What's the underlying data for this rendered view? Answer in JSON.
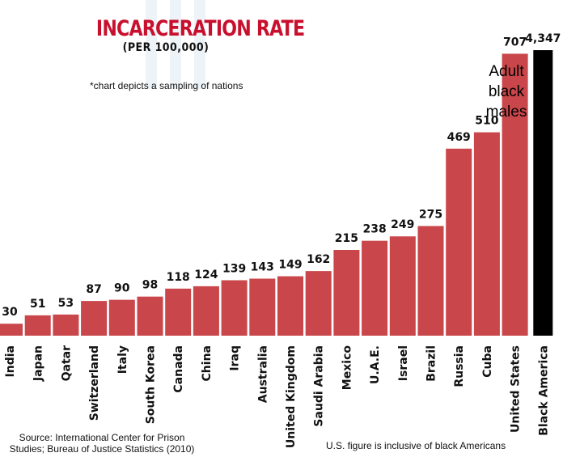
{
  "chart_data": {
    "type": "bar",
    "title": "INCARCERATION RATE",
    "subtitle": "(PER 100,000)",
    "note": "*chart depicts a sampling of nations",
    "categories": [
      "India",
      "Japan",
      "Qatar",
      "Switzerland",
      "Italy",
      "South Korea",
      "Canada",
      "China",
      "Iraq",
      "Australia",
      "United Kingdom",
      "Saudi Arabia",
      "Mexico",
      "U.A.E.",
      "Israel",
      "Brazil",
      "Russia",
      "Cuba",
      "United States",
      "Black America"
    ],
    "values": [
      30,
      51,
      53,
      87,
      90,
      98,
      118,
      124,
      139,
      143,
      149,
      162,
      215,
      238,
      249,
      275,
      469,
      510,
      707,
      4347
    ],
    "value_labels": [
      "30",
      "51",
      "53",
      "87",
      "90",
      "98",
      "118",
      "124",
      "139",
      "143",
      "149",
      "162",
      "215",
      "238",
      "249",
      "275",
      "469",
      "510",
      "707",
      "4,347"
    ],
    "annotation": "Adult black males",
    "source": "Source: International Center for Prison Studies; Bureau of Justice Statistics (2010)",
    "footnote": "U.S. figure is inclusive of black Americans",
    "colors": {
      "country_bar": "#c9464a",
      "highlight_bar": "#000000",
      "title": "#c8102e"
    },
    "grid": false,
    "legend": "none"
  }
}
